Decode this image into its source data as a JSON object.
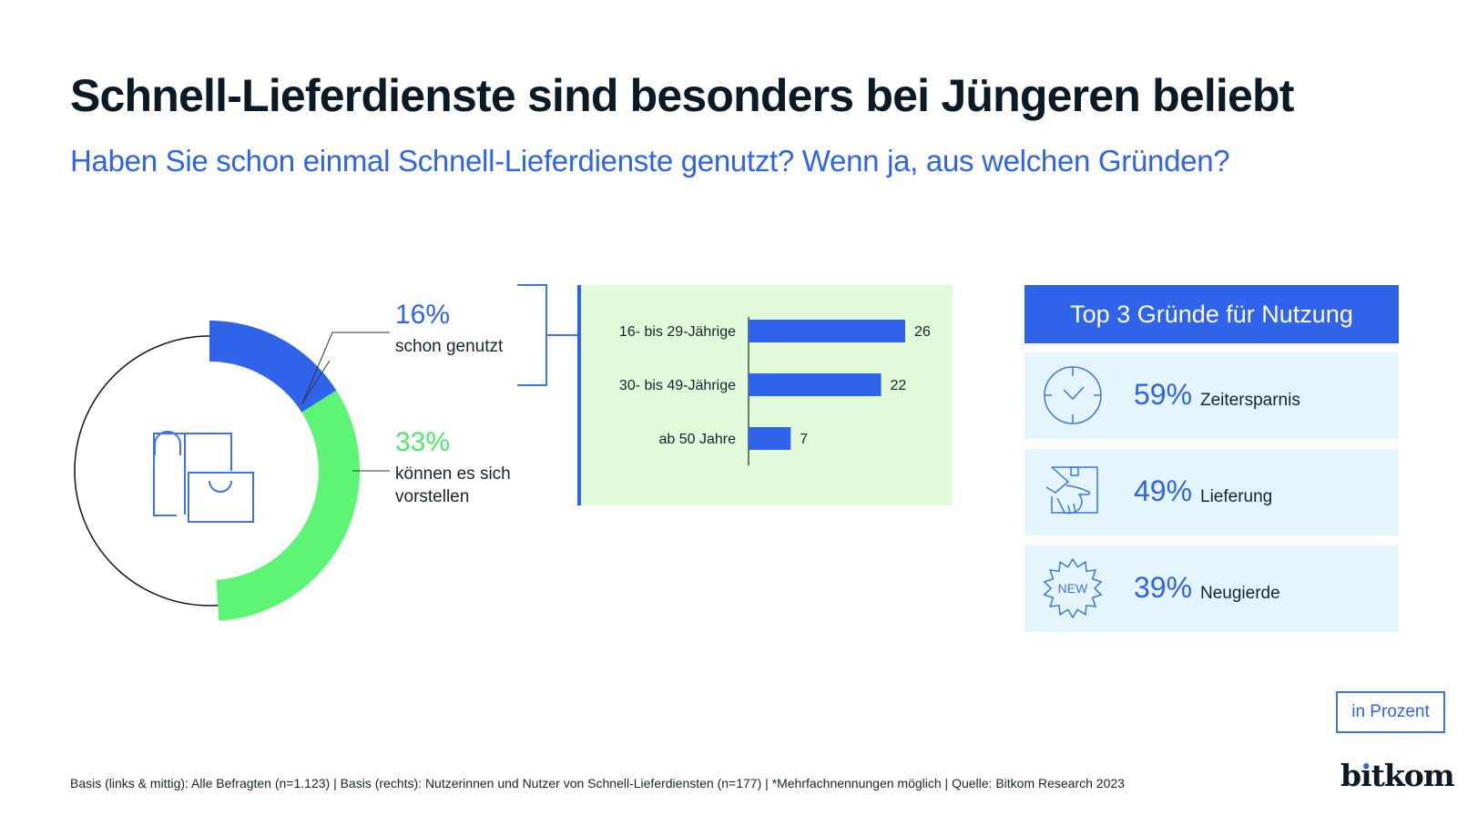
{
  "header": {
    "title": "Schnell-Lieferdienste sind besonders bei Jüngeren beliebt",
    "subtitle": "Haben Sie schon einmal Schnell-Lieferdienste genutzt? Wenn ja, aus welchen Gründen?"
  },
  "colors": {
    "accent_blue": "#2f63ea",
    "accent_green": "#5cf576",
    "bar_panel_bg": "#e1fada",
    "reason_bg": "#e4f6fb",
    "title": "#0b1a24"
  },
  "chart_data": [
    {
      "type": "pie",
      "variant": "donut",
      "title": "",
      "slices": [
        {
          "label": "schon genutzt",
          "value": 16,
          "value_label": "16%",
          "color": "#2f63ea"
        },
        {
          "label": "können es sich vorstellen",
          "value": 33,
          "value_label": "33%",
          "color": "#5cf576"
        }
      ],
      "remainder_label": "",
      "center_icon": "shopping-bags-icon"
    },
    {
      "type": "bar",
      "orientation": "horizontal",
      "title": "",
      "categories": [
        "16- bis 29-Jährige",
        "30- bis 49-Jährige",
        "ab 50 Jahre"
      ],
      "values": [
        26,
        22,
        7
      ],
      "value_labels": [
        "26",
        "22",
        "7"
      ],
      "xlim": [
        0,
        30
      ],
      "color": "#2f63ea",
      "grid": false
    },
    {
      "type": "table",
      "title": "Top 3 Gründe für Nutzung",
      "rows": [
        {
          "icon": "clock-icon",
          "value": 59,
          "value_label": "59%",
          "label": "Zeitersparnis"
        },
        {
          "icon": "delivery-hand-icon",
          "value": 49,
          "value_label": "49%",
          "label": "Lieferung"
        },
        {
          "icon": "new-badge-icon",
          "value": 39,
          "value_label": "39%",
          "label": "Neugierde",
          "icon_text": "NEW"
        }
      ]
    }
  ],
  "donut_labels": {
    "used_pct": "16%",
    "used_label": "schon genutzt",
    "could_pct": "33%",
    "could_label": "können es sich vorstellen"
  },
  "unit_note": "in Prozent",
  "footer": "Basis (links & mittig): Alle Befragten (n=1.123) | Basis (rechts): Nutzerinnen und Nutzer von Schnell-Lieferdiensten (n=177) | *Mehrfachnennungen möglich | Quelle: Bitkom Research 2023",
  "logo": {
    "text_pre": "b",
    "text_dot": "i",
    "text_post": "tkom"
  }
}
